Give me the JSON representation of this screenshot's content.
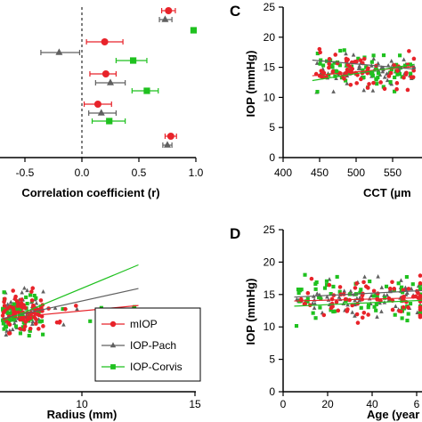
{
  "chart_data": [
    {
      "panel": "",
      "type": "scatter",
      "xlabel": "Correlation coefficient (r)",
      "xticks": [
        "-0.5",
        "0.0",
        "0.5",
        "1.0"
      ],
      "xlim": [
        -0.72,
        1.06
      ],
      "rows": [
        {
          "series": "mIOP",
          "r": 0.76,
          "lo": 0.7,
          "hi": 0.82,
          "y": 12
        },
        {
          "series": "IOP-Pach",
          "r": 0.73,
          "lo": 0.68,
          "hi": 0.79,
          "y": 22
        },
        {
          "series": "IOP-Corvis",
          "r": 0.98,
          "lo": null,
          "hi": null,
          "y": 34
        },
        {
          "series": "mIOP",
          "r": 0.2,
          "lo": 0.04,
          "hi": 0.36,
          "y": 47
        },
        {
          "series": "IOP-Pach",
          "r": -0.2,
          "lo": -0.36,
          "hi": -0.02,
          "y": 59
        },
        {
          "series": "IOP-Corvis",
          "r": 0.45,
          "lo": 0.3,
          "hi": 0.57,
          "y": 68
        },
        {
          "series": "mIOP",
          "r": 0.21,
          "lo": 0.07,
          "hi": 0.3,
          "y": 83
        },
        {
          "series": "IOP-Pach",
          "r": 0.25,
          "lo": 0.12,
          "hi": 0.38,
          "y": 93
        },
        {
          "series": "IOP-Corvis",
          "r": 0.57,
          "lo": 0.44,
          "hi": 0.67,
          "y": 102
        },
        {
          "series": "mIOP",
          "r": 0.14,
          "lo": 0.02,
          "hi": 0.26,
          "y": 117
        },
        {
          "series": "IOP-Pach",
          "r": 0.17,
          "lo": 0.06,
          "hi": 0.3,
          "y": 127
        },
        {
          "series": "IOP-Corvis",
          "r": 0.24,
          "lo": 0.09,
          "hi": 0.38,
          "y": 136
        },
        {
          "series": "mIOP",
          "r": 0.78,
          "lo": 0.73,
          "hi": 0.83,
          "y": 153
        },
        {
          "series": "IOP-Pach",
          "r": 0.75,
          "lo": 0.71,
          "hi": 0.79,
          "y": 163
        }
      ]
    },
    {
      "panel": "C",
      "type": "scatter",
      "xlabel": "CCT (µm",
      "ylabel": "IOP (mmHg)",
      "xticks": [
        "400",
        "450",
        "500",
        "550"
      ],
      "yticks": [
        "0",
        "5",
        "10",
        "15",
        "20",
        "25"
      ],
      "xlim": [
        400,
        580
      ],
      "ylim": [
        0,
        25
      ],
      "trend_lines": [
        {
          "series": "mIOP",
          "x": [
            440,
            580
          ],
          "y": [
            13.6,
            15.1
          ]
        },
        {
          "series": "IOP-Pach",
          "x": [
            440,
            580
          ],
          "y": [
            16.2,
            14.7
          ]
        },
        {
          "series": "IOP-Corvis",
          "x": [
            440,
            580
          ],
          "y": [
            12.8,
            15.5
          ]
        }
      ]
    },
    {
      "panel": "",
      "type": "scatter",
      "xlabel": "Radius (mm)",
      "xticks": [
        "10",
        "15"
      ],
      "xlim": [
        6.5,
        16.8
      ],
      "ylim": [
        0,
        30
      ],
      "trend_lines": [
        {
          "series": "mIOP",
          "x": [
            6.5,
            12.5
          ],
          "y": [
            13.0,
            15.3
          ]
        },
        {
          "series": "IOP-Pach",
          "x": [
            6.5,
            12.5
          ],
          "y": [
            13.0,
            18.3
          ]
        },
        {
          "series": "IOP-Corvis",
          "x": [
            6.5,
            12.5
          ],
          "y": [
            12.5,
            22.5
          ]
        }
      ],
      "legend": [
        {
          "name": "mIOP",
          "color": "#e8232a",
          "marker": "circle"
        },
        {
          "name": "IOP-Pach",
          "color": "#606060",
          "marker": "triangle"
        },
        {
          "name": "IOP-Corvis",
          "color": "#1fc11f",
          "marker": "square"
        }
      ]
    },
    {
      "panel": "D",
      "type": "scatter",
      "xlabel": "Age (year",
      "ylabel": "IOP (mmHg)",
      "xticks": [
        "0",
        "20",
        "40",
        "6"
      ],
      "yticks": [
        "0",
        "5",
        "10",
        "15",
        "20",
        "25"
      ],
      "xlim": [
        0,
        68
      ],
      "ylim": [
        0,
        25
      ],
      "trend_lines": [
        {
          "series": "mIOP",
          "x": [
            5,
            68
          ],
          "y": [
            14.0,
            14.5
          ]
        },
        {
          "series": "IOP-Pach",
          "x": [
            5,
            68
          ],
          "y": [
            14.6,
            15.6
          ]
        },
        {
          "series": "IOP-Corvis",
          "x": [
            5,
            68
          ],
          "y": [
            13.2,
            14.1
          ]
        }
      ]
    }
  ],
  "colors": {
    "mIOP": "#e8232a",
    "IOP-Pach": "#606060",
    "IOP-Corvis": "#1fc11f"
  }
}
